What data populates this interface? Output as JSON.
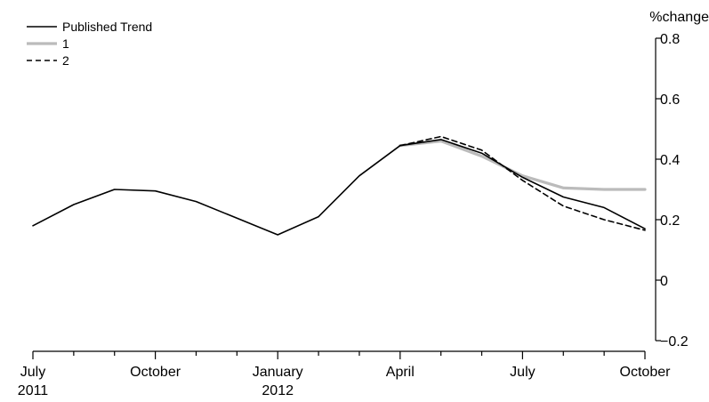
{
  "chart_data": {
    "type": "line",
    "title": "",
    "xlabel": "",
    "ylabel": "%change",
    "ylim": [
      -0.2,
      0.8
    ],
    "yticks": [
      {
        "value": -0.2,
        "label": "−0.2"
      },
      {
        "value": 0,
        "label": "0"
      },
      {
        "value": 0.2,
        "label": "0.2"
      },
      {
        "value": 0.4,
        "label": "0.4"
      },
      {
        "value": 0.6,
        "label": "0.6"
      },
      {
        "value": 0.8,
        "label": "0.8"
      }
    ],
    "x": [
      "Jul 2011",
      "Aug 2011",
      "Sep 2011",
      "Oct 2011",
      "Nov 2011",
      "Dec 2011",
      "Jan 2012",
      "Feb 2012",
      "Mar 2012",
      "Apr 2012",
      "May 2012",
      "Jun 2012",
      "Jul 2012",
      "Aug 2012",
      "Sep 2012",
      "Oct 2012"
    ],
    "xticks": [
      {
        "index": 0,
        "lines": [
          "July",
          "2011"
        ]
      },
      {
        "index": 3,
        "lines": [
          "October",
          ""
        ]
      },
      {
        "index": 6,
        "lines": [
          "January",
          "2012"
        ]
      },
      {
        "index": 9,
        "lines": [
          "April",
          ""
        ]
      },
      {
        "index": 12,
        "lines": [
          "July",
          ""
        ]
      },
      {
        "index": 15,
        "lines": [
          "October",
          ""
        ]
      }
    ],
    "grid": false,
    "legend_position": "top-left",
    "series": [
      {
        "name": "Published Trend",
        "color": "#000000",
        "style": "solid",
        "values": [
          0.18,
          0.25,
          0.3,
          0.295,
          0.26,
          0.205,
          0.15,
          0.21,
          0.345,
          0.445,
          0.465,
          0.42,
          0.34,
          0.275,
          0.24,
          0.17
        ]
      },
      {
        "name": "1",
        "color": "#bbbbbb",
        "style": "solid",
        "values": [
          null,
          null,
          null,
          null,
          null,
          null,
          null,
          null,
          null,
          0.445,
          0.46,
          0.41,
          0.345,
          0.305,
          0.3,
          0.3
        ]
      },
      {
        "name": "2",
        "color": "#000000",
        "style": "dashed",
        "values": [
          null,
          null,
          null,
          null,
          null,
          null,
          null,
          null,
          null,
          0.445,
          0.475,
          0.43,
          0.33,
          0.245,
          0.2,
          0.165
        ]
      }
    ]
  }
}
